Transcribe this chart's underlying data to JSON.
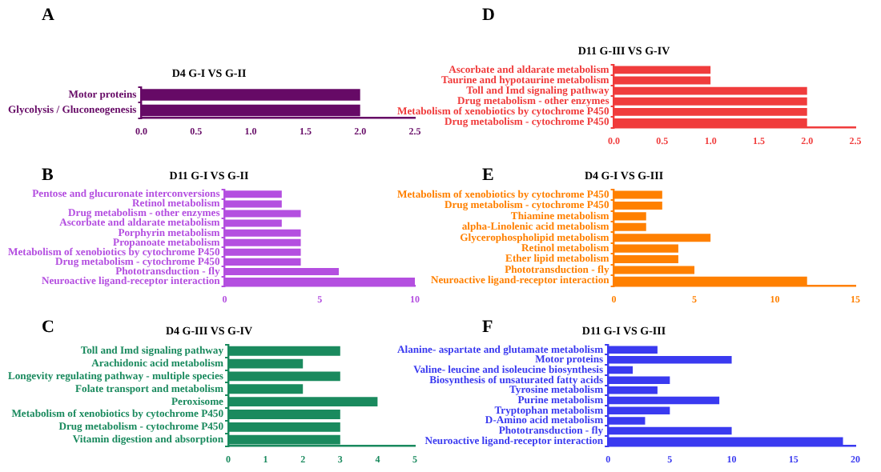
{
  "chart_data": [
    {
      "type": "bar",
      "orientation": "horizontal",
      "title": "D4 G-I VS G-II",
      "annotations": [
        "A"
      ],
      "categories": [
        "Motor proteins",
        "Glycolysis / Gluconeogenesis"
      ],
      "values": [
        2,
        2
      ],
      "color": "#660a66",
      "xlim": [
        0,
        2.5
      ],
      "xticks": [
        {
          "value": 0,
          "label": "0.0"
        },
        0.5,
        {
          "value": 1,
          "label": "1.0"
        },
        1.5,
        {
          "value": 2,
          "label": "2.0"
        },
        2.5
      ],
      "grid": false,
      "legend": false
    },
    {
      "type": "bar",
      "orientation": "horizontal",
      "title": "D11 G-III VS G-IV",
      "annotations": [
        "D"
      ],
      "categories": [
        "Ascorbate and aldarate metabolism",
        "Taurine and hypotaurine metabolism",
        "Toll and Imd signaling pathway",
        "Drug metabolism - other enzymes",
        "Metabolism of xenobiotics by cytochrome P450",
        "Drug metabolism - cytochrome P450"
      ],
      "values": [
        1,
        1,
        2,
        2,
        2,
        2
      ],
      "color": "#f03c3c",
      "xlim": [
        0,
        2.5
      ],
      "xticks": [
        {
          "value": 0,
          "label": "0.0"
        },
        0.5,
        {
          "value": 1,
          "label": "1.0"
        },
        1.5,
        {
          "value": 2,
          "label": "2.0"
        },
        2.5
      ],
      "grid": false,
      "legend": false
    },
    {
      "type": "bar",
      "orientation": "horizontal",
      "title": "D11 G-I VS G-II",
      "annotations": [
        "B"
      ],
      "categories": [
        "Pentose and glucuronate interconversions",
        "Retinol metabolism",
        "Drug metabolism - other enzymes",
        "Ascorbate and aldarate metabolism",
        "Porphyrin metabolism",
        "Propanoate metabolism",
        "Metabolism of xenobiotics by cytochrome P450",
        "Drug metabolism - cytochrome P450",
        "Phototransduction - fly",
        "Neuroactive ligand-receptor interaction"
      ],
      "values": [
        3,
        3,
        4,
        3,
        4,
        4,
        4,
        4,
        6,
        10
      ],
      "color": "#b44fe0",
      "xlim": [
        0,
        10
      ],
      "xticks": [
        0,
        5,
        10
      ],
      "grid": false,
      "legend": false
    },
    {
      "type": "bar",
      "orientation": "horizontal",
      "title": "D4 G-I VS G-III",
      "annotations": [
        "E"
      ],
      "categories": [
        "Metabolism of xenobiotics by cytochrome P450",
        "Drug metabolism - cytochrome P450",
        "Thiamine metabolism",
        "alpha-Linolenic acid metabolism",
        "Glycerophospholipid metabolism",
        "Retinol metabolism",
        "Ether lipid metabolism",
        "Phototransduction - fly",
        "Neuroactive ligand-receptor interaction"
      ],
      "values": [
        3,
        3,
        2,
        2,
        6,
        4,
        4,
        5,
        12
      ],
      "color": "#ff8000",
      "xlim": [
        0,
        15
      ],
      "xticks": [
        0,
        5,
        10,
        15
      ],
      "grid": false,
      "legend": false
    },
    {
      "type": "bar",
      "orientation": "horizontal",
      "title": "D4 G-III VS G-IV",
      "annotations": [
        "C"
      ],
      "categories": [
        "Toll and Imd signaling pathway",
        "Arachidonic acid metabolism",
        "Longevity regulating pathway - multiple species",
        "Folate transport and metabolism",
        "Peroxisome",
        "Metabolism of xenobiotics by cytochrome P450",
        "Drug metabolism - cytochrome P450",
        "Vitamin digestion and absorption"
      ],
      "values": [
        3,
        2,
        3,
        2,
        4,
        3,
        3,
        3
      ],
      "color": "#1a8a5e",
      "xlim": [
        0,
        5
      ],
      "xticks": [
        0,
        1,
        2,
        3,
        4,
        5
      ],
      "grid": false,
      "legend": false
    },
    {
      "type": "bar",
      "orientation": "horizontal",
      "title": "D11 G-I VS G-III",
      "annotations": [
        "F"
      ],
      "categories": [
        "Alanine- aspartate and glutamate metabolism",
        "Motor proteins",
        "Valine- leucine and isoleucine biosynthesis",
        "Biosynthesis of unsaturated fatty acids",
        "Tyrosine metabolism",
        "Purine metabolism",
        "Tryptophan metabolism",
        "D-Amino acid metabolism",
        "Phototransduction - fly",
        "Neuroactive ligand-receptor interaction"
      ],
      "values": [
        4,
        10,
        2,
        5,
        4,
        9,
        5,
        3,
        10,
        19
      ],
      "color": "#3a3af0",
      "xlim": [
        0,
        20
      ],
      "xticks": [
        0,
        5,
        10,
        15,
        20
      ],
      "grid": false,
      "legend": false
    }
  ]
}
